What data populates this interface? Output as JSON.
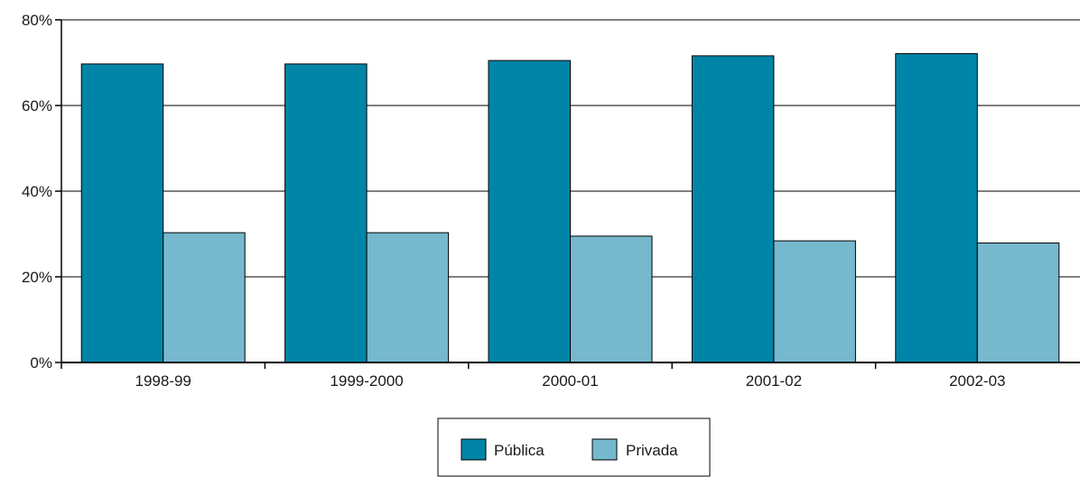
{
  "chart_data": {
    "type": "bar",
    "title": "",
    "xlabel": "",
    "ylabel": "",
    "categories": [
      "1998-99",
      "1999-2000",
      "2000-01",
      "2001-02",
      "2002-03"
    ],
    "series": [
      {
        "name": "Pública",
        "color": "#0085A8",
        "values": [
          69.7,
          69.7,
          70.5,
          71.6,
          72.1
        ]
      },
      {
        "name": "Privada",
        "color": "#76B8CD",
        "values": [
          30.3,
          30.3,
          29.5,
          28.4,
          27.9
        ]
      }
    ],
    "ylim": [
      0,
      80
    ],
    "yticks": [
      {
        "value": 0,
        "label": "0%"
      },
      {
        "value": 20,
        "label": "20%"
      },
      {
        "value": 40,
        "label": "40%"
      },
      {
        "value": 60,
        "label": "60%"
      },
      {
        "value": 80,
        "label": "80%"
      }
    ],
    "grid": true,
    "legend": {
      "position": "bottom-center"
    }
  }
}
